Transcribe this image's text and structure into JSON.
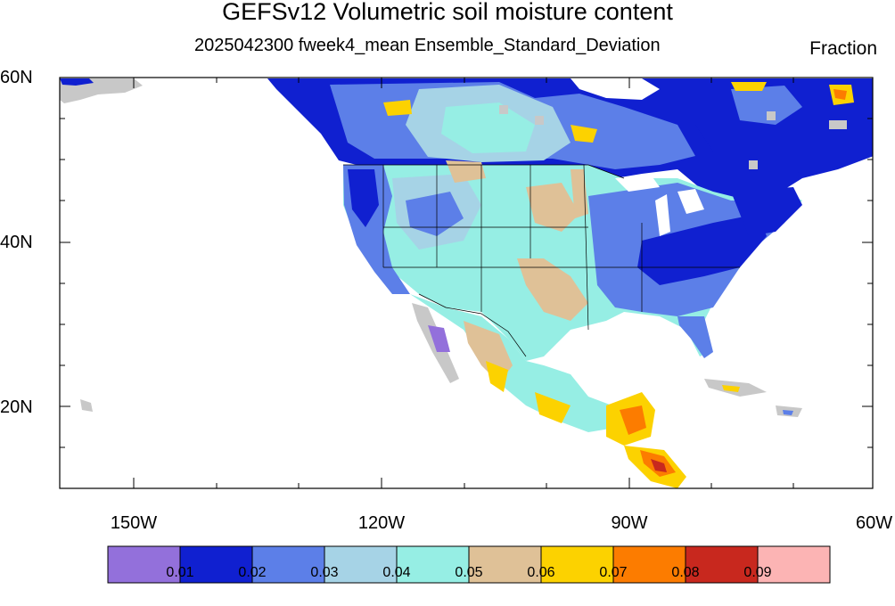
{
  "title": "GEFSv12 Volumetric soil moisture content",
  "subtitle": "2025042300 fweek4_mean Ensemble_Standard_Deviation",
  "units": "Fraction",
  "lat_labels": [
    "60N",
    "40N",
    "20N"
  ],
  "lon_labels": [
    "150W",
    "120W",
    "90W",
    "60W"
  ],
  "colorbar": {
    "colors": [
      "#9370db",
      "#1020d0",
      "#5c7fe8",
      "#a6d3e6",
      "#96eee4",
      "#dfc197",
      "#fcd200",
      "#fc7c00",
      "#c8281e",
      "#fcb4b4"
    ],
    "labels": [
      "0.01",
      "0.02",
      "0.03",
      "0.04",
      "0.05",
      "0.06",
      "0.07",
      "0.08",
      "0.09"
    ]
  },
  "colors": {
    "land_missing": "#c8c8c8",
    "ocean": "#ffffff",
    "border": "#000000"
  }
}
